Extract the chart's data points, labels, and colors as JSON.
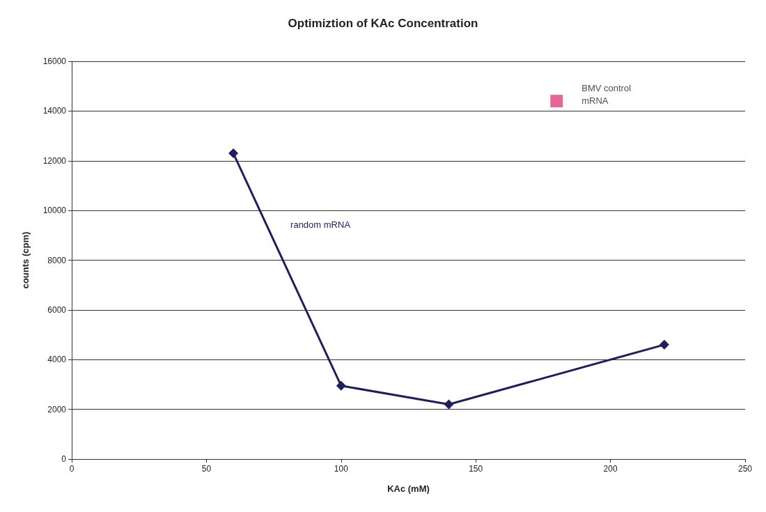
{
  "chart_data": {
    "type": "line",
    "title": "Optimiztion of KAc Concentration",
    "xlabel": "KAc (mM)",
    "ylabel": "counts (cpm)",
    "xlim": [
      0,
      250
    ],
    "xticks": [
      0,
      50,
      100,
      150,
      200,
      250
    ],
    "ylim": [
      0,
      16000
    ],
    "yticks": [
      0,
      2000,
      4000,
      6000,
      8000,
      10000,
      12000,
      14000,
      16000
    ],
    "grid": "y",
    "legend": false,
    "series": [
      {
        "name": "random mRNA",
        "color": "#1f1f5e",
        "marker": "diamond",
        "x": [
          60,
          100,
          140,
          220
        ],
        "values": [
          12300,
          2950,
          2200,
          4600
        ]
      },
      {
        "name": "BMV control mRNA",
        "type": "scatter",
        "color": "#e0407f",
        "marker": "square",
        "x": [
          180
        ],
        "values": [
          14400
        ]
      }
    ]
  }
}
